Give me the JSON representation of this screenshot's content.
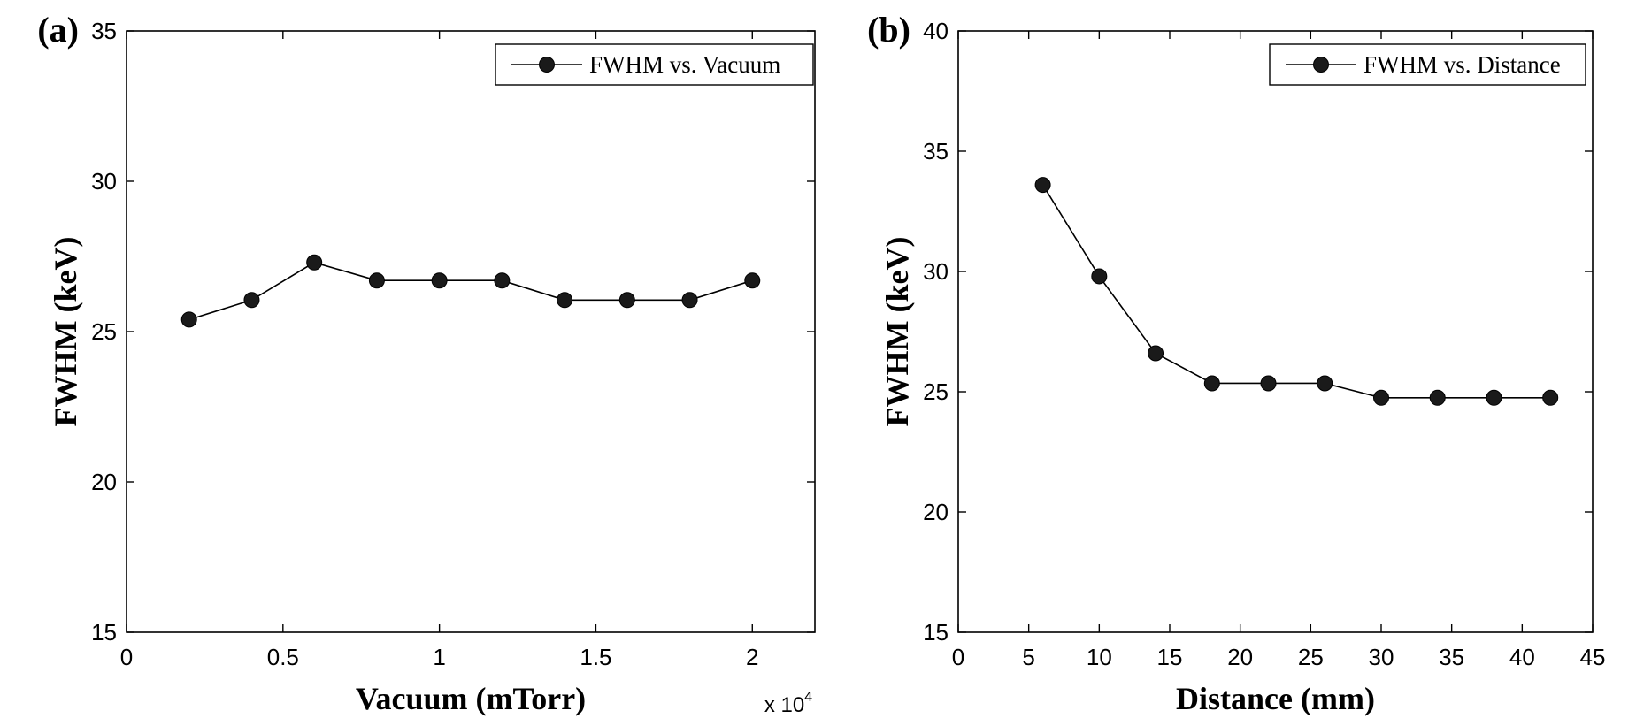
{
  "chart_data": [
    {
      "type": "line",
      "panel_label": "(a)",
      "xlabel": "Vacuum (mTorr)",
      "ylabel": "FWHM (keV)",
      "x_exponent": {
        "base": "x 10",
        "power": "4"
      },
      "xlim": [
        0,
        22000
      ],
      "ylim": [
        15,
        35
      ],
      "xticks": [
        0,
        5000,
        10000,
        15000,
        20000
      ],
      "xtick_labels": [
        "0",
        "0.5",
        "1",
        "1.5",
        "2"
      ],
      "yticks": [
        15,
        20,
        25,
        30,
        35
      ],
      "ytick_labels": [
        "15",
        "20",
        "25",
        "30",
        "35"
      ],
      "legend_position": "top-right",
      "grid": false,
      "series": [
        {
          "name": "FWHM vs. Vacuum",
          "marker": "filled-circle",
          "color": "#000000",
          "x": [
            2000,
            4000,
            6000,
            8000,
            10000,
            12000,
            14000,
            16000,
            18000,
            20000
          ],
          "y": [
            25.4,
            26.05,
            27.3,
            26.7,
            26.7,
            26.7,
            26.05,
            26.05,
            26.05,
            26.7
          ]
        }
      ]
    },
    {
      "type": "line",
      "panel_label": "(b)",
      "xlabel": "Distance (mm)",
      "ylabel": "FWHM (keV)",
      "xlim": [
        0,
        45
      ],
      "ylim": [
        15,
        40
      ],
      "xticks": [
        0,
        5,
        10,
        15,
        20,
        25,
        30,
        35,
        40,
        45
      ],
      "xtick_labels": [
        "0",
        "5",
        "10",
        "15",
        "20",
        "25",
        "30",
        "35",
        "40",
        "45"
      ],
      "yticks": [
        15,
        20,
        25,
        30,
        35,
        40
      ],
      "ytick_labels": [
        "15",
        "20",
        "25",
        "30",
        "35",
        "40"
      ],
      "legend_position": "top-right",
      "grid": false,
      "series": [
        {
          "name": "FWHM vs. Distance",
          "marker": "filled-circle",
          "color": "#000000",
          "x": [
            6,
            10,
            14,
            18,
            22,
            26,
            30,
            34,
            38,
            42
          ],
          "y": [
            33.6,
            29.8,
            26.6,
            25.35,
            25.35,
            25.35,
            24.75,
            24.75,
            24.75,
            24.75
          ]
        }
      ]
    }
  ]
}
